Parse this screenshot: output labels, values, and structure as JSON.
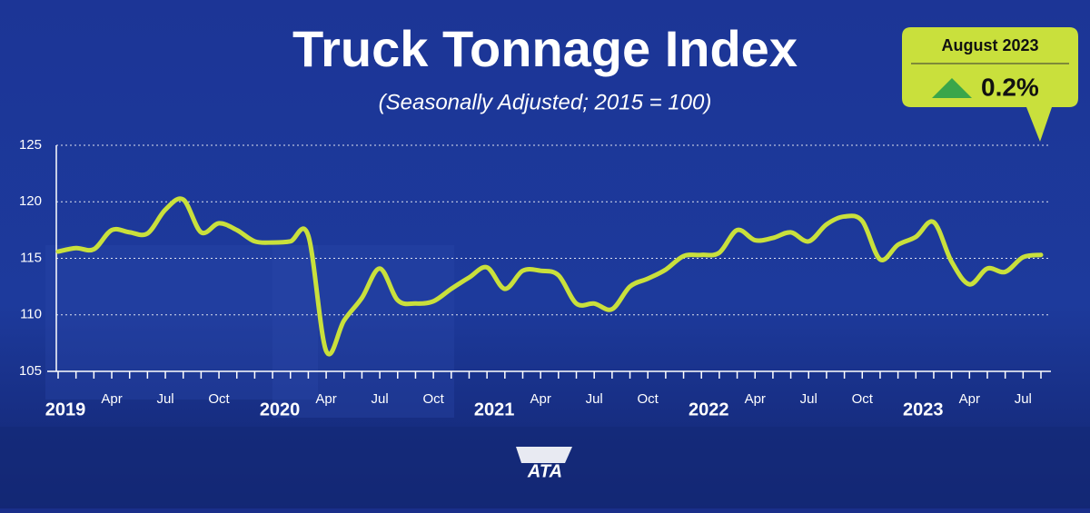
{
  "chart_data": {
    "type": "line",
    "title": "Truck Tonnage Index",
    "subtitle": "(Seasonally Adjusted; 2015 = 100)",
    "categories": [
      "2019",
      null,
      null,
      "Apr",
      null,
      null,
      "Jul",
      null,
      null,
      "Oct",
      null,
      null,
      "2020",
      null,
      null,
      "Apr",
      null,
      null,
      "Jul",
      null,
      null,
      "Oct",
      null,
      null,
      "2021",
      null,
      null,
      "Apr",
      null,
      null,
      "Jul",
      null,
      null,
      "Oct",
      null,
      null,
      "2022",
      null,
      null,
      "Apr",
      null,
      null,
      "Jul",
      null,
      null,
      "Oct",
      null,
      null,
      "2023",
      null,
      null,
      "Apr",
      null,
      null,
      "Jul",
      null
    ],
    "values": [
      115.6,
      115.9,
      115.8,
      117.5,
      117.3,
      117.2,
      119.3,
      120.2,
      117.3,
      118.1,
      117.5,
      116.5,
      116.4,
      116.5,
      117.0,
      106.8,
      109.5,
      111.5,
      114.1,
      111.3,
      111.0,
      111.2,
      112.3,
      113.3,
      114.2,
      112.3,
      113.9,
      113.9,
      113.5,
      111.0,
      111.0,
      110.5,
      112.5,
      113.2,
      114.0,
      115.2,
      115.3,
      115.5,
      117.5,
      116.6,
      116.8,
      117.3,
      116.5,
      118.0,
      118.7,
      118.3,
      114.9,
      116.2,
      116.9,
      118.2,
      114.7,
      112.7,
      114.1,
      113.8,
      115.1,
      115.3
    ],
    "color": "#c9e03c",
    "ylim": [
      105,
      125
    ],
    "yticks": [
      105,
      110,
      115,
      120,
      125
    ],
    "grid": true,
    "callout": {
      "period": "August 2023",
      "change": "0.2%"
    },
    "logo": "ATA"
  }
}
